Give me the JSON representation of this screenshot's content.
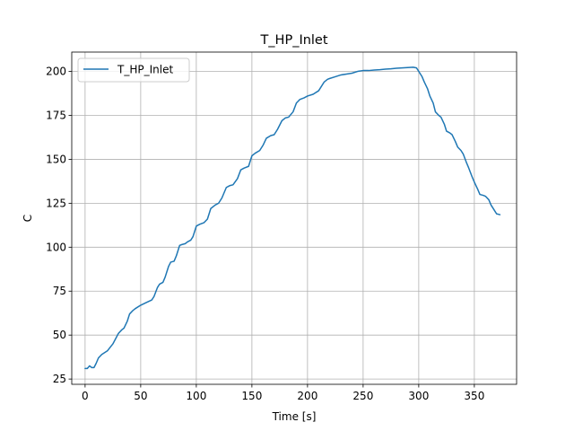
{
  "chart_data": {
    "type": "line",
    "title": "T_HP_Inlet",
    "xlabel": "Time [s]",
    "ylabel": "C",
    "xlim": [
      -12,
      388
    ],
    "ylim": [
      22,
      211
    ],
    "xticks": [
      0,
      50,
      100,
      150,
      200,
      250,
      300,
      350
    ],
    "yticks": [
      25,
      50,
      75,
      100,
      125,
      150,
      175,
      200
    ],
    "grid": true,
    "legend": {
      "position": "top-left"
    },
    "series": [
      {
        "name": "T_HP_Inlet",
        "color": "#1f77b4",
        "x": [
          0,
          2,
          4,
          6,
          8,
          10,
          12,
          15,
          20,
          25,
          30,
          33,
          35,
          38,
          40,
          43,
          45,
          50,
          55,
          60,
          62,
          65,
          67,
          70,
          72,
          75,
          77,
          80,
          82,
          85,
          87,
          90,
          92,
          95,
          97,
          100,
          103,
          107,
          110,
          113,
          117,
          120,
          123,
          127,
          130,
          133,
          137,
          140,
          143,
          147,
          150,
          153,
          157,
          160,
          163,
          167,
          170,
          173,
          177,
          180,
          183,
          187,
          190,
          193,
          197,
          200,
          205,
          210,
          215,
          218,
          220,
          225,
          230,
          235,
          240,
          245,
          250,
          255,
          260,
          265,
          270,
          275,
          280,
          285,
          290,
          295,
          298,
          300,
          303,
          305,
          308,
          310,
          313,
          315,
          318,
          320,
          323,
          325,
          328,
          330,
          333,
          335,
          338,
          340,
          343,
          345,
          348,
          350,
          353,
          355,
          358,
          360,
          363,
          365,
          368,
          370,
          373
        ],
        "y": [
          31,
          31,
          32.5,
          31.5,
          31.5,
          34,
          37,
          39,
          41,
          45,
          51,
          53,
          54,
          58,
          62,
          64,
          65,
          67,
          68.5,
          70,
          72,
          77,
          79,
          80,
          83,
          89,
          91.5,
          92,
          95,
          101,
          101.5,
          102,
          103,
          104,
          106,
          112,
          113,
          114,
          116,
          122,
          124,
          125,
          128,
          134,
          135,
          135.5,
          139,
          144,
          145,
          146,
          152,
          153.5,
          155,
          158,
          162,
          163.5,
          164,
          167,
          172,
          173.5,
          174,
          177,
          182,
          184,
          185,
          186,
          187,
          189,
          194,
          195.5,
          196,
          197,
          198,
          198.5,
          199,
          200,
          200.5,
          200.5,
          200.8,
          201,
          201.3,
          201.5,
          201.8,
          202,
          202.2,
          202.4,
          202,
          200,
          197,
          194,
          190,
          186,
          182,
          177,
          175,
          174,
          170,
          166,
          165,
          164,
          160,
          157,
          155,
          153,
          148,
          145,
          140,
          137,
          133,
          130,
          129.5,
          129,
          127,
          124,
          121,
          119,
          118.5
        ]
      }
    ]
  }
}
